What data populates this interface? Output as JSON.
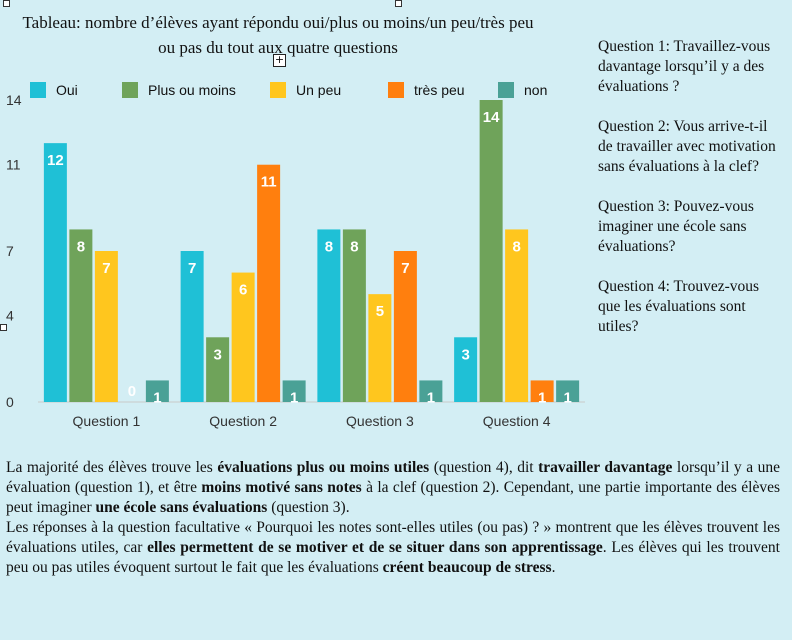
{
  "chart_data": {
    "type": "bar",
    "title": "Tableau: nombre d’élèves ayant répondu oui/plus ou moins/un peu/très peu ou pas du tout aux quatre questions",
    "categories": [
      "Question 1",
      "Question 2",
      "Question 3",
      "Question 4"
    ],
    "series": [
      {
        "name": "Oui",
        "color": "#1fc0d6",
        "values": [
          12,
          7,
          8,
          3
        ]
      },
      {
        "name": "Plus ou moins",
        "color": "#6fa35a",
        "values": [
          8,
          3,
          8,
          14
        ]
      },
      {
        "name": "Un peu",
        "color": "#ffc61e",
        "values": [
          7,
          6,
          5,
          8
        ]
      },
      {
        "name": "très peu",
        "color": "#ff7f0e",
        "values": [
          0,
          11,
          7,
          1
        ]
      },
      {
        "name": "non",
        "color": "#4aa196",
        "values": [
          1,
          1,
          1,
          1
        ]
      }
    ],
    "yticks": [
      "0",
      "4",
      "7",
      "11",
      "14"
    ],
    "ylim": [
      0,
      14
    ],
    "grid": false,
    "legend": "top"
  },
  "questions": [
    "Question 1: Travaillez-vous davantage lorsqu’il y a des évaluations ?",
    "Question 2: Vous arrive-t-il de travailler avec motivation sans évaluations à la clef?",
    "Question 3: Pouvez-vous imaginer une école sans évaluations?",
    "Question 4: Trouvez-vous que les évaluations sont utiles?"
  ],
  "text": {
    "p1": [
      {
        "t": "La majorité des élèves trouve les ",
        "b": false
      },
      {
        "t": "évaluations plus ou moins utiles",
        "b": true
      },
      {
        "t": " (question 4), dit ",
        "b": false
      },
      {
        "t": "travailler davantage",
        "b": true
      },
      {
        "t": " lorsqu’il y a une évaluation (question 1), et être ",
        "b": false
      },
      {
        "t": "moins motivé sans notes",
        "b": true
      },
      {
        "t": " à la clef (question 2). Cependant, une partie importante des élèves peut imaginer ",
        "b": false
      },
      {
        "t": "une école sans évaluations",
        "b": true
      },
      {
        "t": " (question 3).",
        "b": false
      }
    ],
    "p2": [
      {
        "t": "Les réponses à la question facultative «  Pourquoi les notes sont-elles utiles (ou pas)  ? » montrent que les élèves trouvent les évaluations utiles, car ",
        "b": false
      },
      {
        "t": "elles permettent de se motiver et de se situer dans son apprentissage",
        "b": true
      },
      {
        "t": ". Les élèves qui les trouvent peu ou pas utiles évoquent surtout le fait que les évaluations ",
        "b": false
      },
      {
        "t": "créent beaucoup de stress",
        "b": true
      },
      {
        "t": ".",
        "b": false
      }
    ]
  }
}
